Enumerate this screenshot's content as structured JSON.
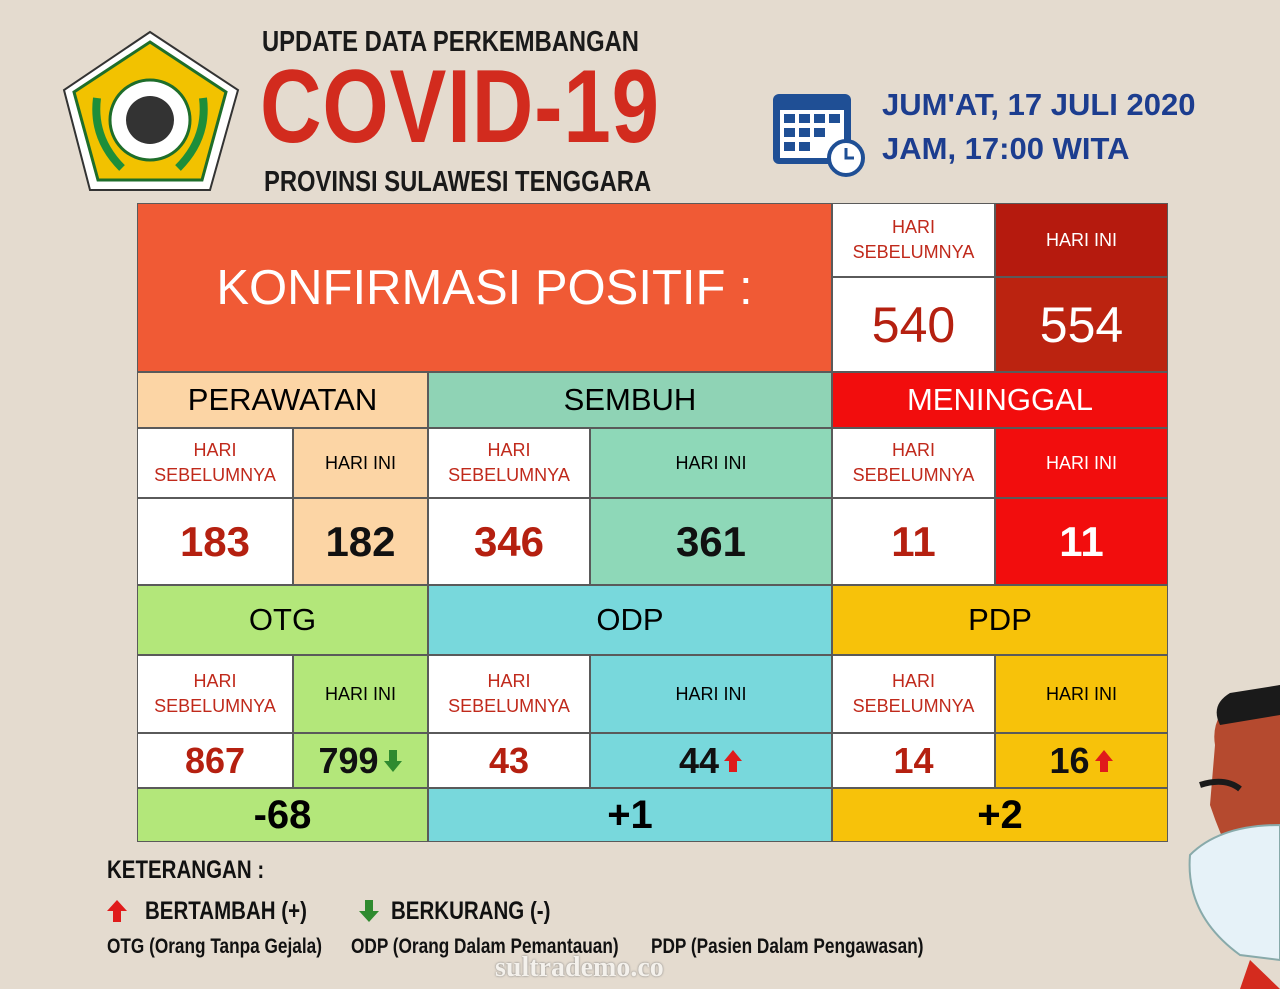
{
  "header": {
    "title_top": "UPDATE DATA PERKEMBANGAN",
    "title_main": "COVID-19",
    "title_bottom": "PROVINSI SULAWESI TENGGARA",
    "date": "JUM'AT, 17 JULI 2020",
    "time": "JAM, 17:00 WITA"
  },
  "confirmed": {
    "label": "KONFIRMASI POSITIF :",
    "previous_label": "HARI SEBELUMNYA",
    "today_label": "HARI INI",
    "previous": 540,
    "today": 554
  },
  "sections": [
    {
      "name": "PERAWATAN",
      "previous_label": "HARI SEBELUMNYA",
      "today_label": "HARI INI",
      "previous": 183,
      "today": 182
    },
    {
      "name": "SEMBUH",
      "previous_label": "HARI SEBELUMNYA",
      "today_label": "HARI INI",
      "previous": 346,
      "today": 361
    },
    {
      "name": "MENINGGAL",
      "previous_label": "HARI SEBELUMNYA",
      "today_label": "HARI INI",
      "previous": 11,
      "today": 11
    },
    {
      "name": "OTG",
      "previous_label": "HARI SEBELUMNYA",
      "today_label": "HARI INI",
      "previous": 867,
      "today": 799,
      "change": "-68"
    },
    {
      "name": "ODP",
      "previous_label": "HARI SEBELUMNYA",
      "today_label": "HARI INI",
      "previous": 43,
      "today": 44,
      "change": "+1"
    },
    {
      "name": "PDP",
      "previous_label": "HARI SEBELUMNYA",
      "today_label": "HARI INI",
      "previous": 14,
      "today": 16,
      "change": "+2"
    }
  ],
  "legend": {
    "title": "KETERANGAN :",
    "increase": "BERTAMBAH (+)",
    "decrease": "BERKURANG (-)",
    "notes": [
      "OTG (Orang Tanpa Gejala)",
      "ODP (Orang Dalam Pemantauan)",
      "PDP (Pasien Dalam Pengawasan)"
    ]
  },
  "watermark": "sultrademo.co"
}
